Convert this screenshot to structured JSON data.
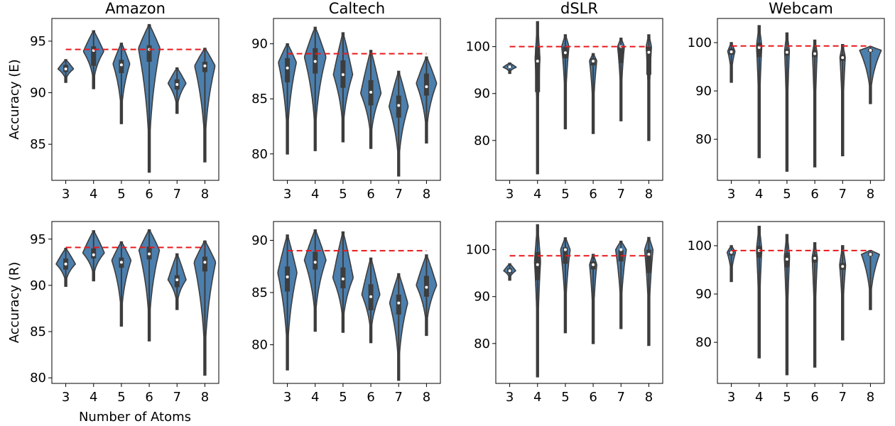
{
  "xlabel": "Number of Atoms",
  "row_labels": [
    "Accuracy (E)",
    "Accuracy (R)"
  ],
  "colors": {
    "violin": "#4c7fad",
    "edge": "#3d3d3d",
    "box": "#3d3d3d",
    "median": "#ffffff",
    "reference": "#e8191c"
  },
  "chart_data": [
    {
      "type": "violin",
      "title": "Amazon",
      "row": 0,
      "col": 0,
      "ylabel": "Accuracy (E)",
      "categories": [
        "3",
        "4",
        "5",
        "6",
        "7",
        "8"
      ],
      "ylim": [
        81.5,
        97.2
      ],
      "yticks": [
        85,
        90,
        95
      ],
      "reference": 94.2,
      "series": [
        {
          "min": 91.0,
          "q1": 92.0,
          "median": 92.3,
          "q3": 92.7,
          "max": 93.2,
          "bulge": 92.3,
          "peak": 0.65
        },
        {
          "min": 90.4,
          "q1": 92.6,
          "median": 94.1,
          "q3": 94.5,
          "max": 96.0,
          "bulge": 94.0,
          "peak": 0.85
        },
        {
          "min": 87.0,
          "q1": 91.9,
          "median": 92.7,
          "q3": 93.2,
          "max": 94.8,
          "bulge": 92.8,
          "peak": 0.7
        },
        {
          "min": 82.3,
          "q1": 93.0,
          "median": 94.2,
          "q3": 94.6,
          "max": 96.6,
          "bulge": 94.3,
          "peak": 0.9
        },
        {
          "min": 88.0,
          "q1": 90.3,
          "median": 90.8,
          "q3": 91.3,
          "max": 92.4,
          "bulge": 90.9,
          "peak": 0.75
        },
        {
          "min": 83.3,
          "q1": 92.0,
          "median": 92.6,
          "q3": 93.0,
          "max": 94.3,
          "bulge": 92.6,
          "peak": 0.85
        }
      ]
    },
    {
      "type": "violin",
      "title": "Caltech",
      "row": 0,
      "col": 1,
      "categories": [
        "3",
        "4",
        "5",
        "6",
        "7",
        "8"
      ],
      "ylim": [
        77.6,
        92.3
      ],
      "yticks": [
        80,
        85,
        90
      ],
      "reference": 89.1,
      "series": [
        {
          "min": 80.0,
          "q1": 86.5,
          "median": 87.8,
          "q3": 88.7,
          "max": 90.0,
          "bulge": 88.3,
          "peak": 0.75
        },
        {
          "min": 80.3,
          "q1": 87.3,
          "median": 88.4,
          "q3": 89.6,
          "max": 91.5,
          "bulge": 88.8,
          "peak": 0.9
        },
        {
          "min": 81.1,
          "q1": 86.0,
          "median": 87.2,
          "q3": 88.5,
          "max": 91.0,
          "bulge": 87.2,
          "peak": 0.8
        },
        {
          "min": 80.5,
          "q1": 84.4,
          "median": 85.6,
          "q3": 86.7,
          "max": 89.4,
          "bulge": 85.5,
          "peak": 0.85
        },
        {
          "min": 78.0,
          "q1": 83.3,
          "median": 84.4,
          "q3": 85.3,
          "max": 87.5,
          "bulge": 84.3,
          "peak": 0.8
        },
        {
          "min": 81.0,
          "q1": 85.3,
          "median": 86.1,
          "q3": 87.3,
          "max": 88.8,
          "bulge": 86.4,
          "peak": 0.85
        }
      ]
    },
    {
      "type": "violin",
      "title": "dSLR",
      "row": 0,
      "col": 2,
      "categories": [
        "3",
        "4",
        "5",
        "6",
        "7",
        "8"
      ],
      "ylim": [
        71.5,
        106.0
      ],
      "yticks": [
        80,
        90,
        100
      ],
      "reference": 100.0,
      "series": [
        {
          "min": 94.3,
          "q1": 95.5,
          "median": 95.7,
          "q3": 96.0,
          "max": 96.5,
          "bulge": 95.6,
          "peak": 0.55
        },
        {
          "min": 72.9,
          "q1": 90.3,
          "median": 96.9,
          "q3": 100.0,
          "max": 105.3,
          "bulge": 97.5,
          "peak": 0.2
        },
        {
          "min": 82.5,
          "q1": 97.5,
          "median": 98.7,
          "q3": 100.0,
          "max": 102.5,
          "bulge": 100.0,
          "peak": 0.3
        },
        {
          "min": 81.5,
          "q1": 96.0,
          "median": 96.9,
          "q3": 97.5,
          "max": 98.5,
          "bulge": 97.0,
          "peak": 0.3
        },
        {
          "min": 84.2,
          "q1": 96.5,
          "median": 100.0,
          "q3": 100.0,
          "max": 101.8,
          "bulge": 100.0,
          "peak": 0.28
        },
        {
          "min": 80.0,
          "q1": 94.0,
          "median": 98.8,
          "q3": 100.0,
          "max": 102.5,
          "bulge": 100.0,
          "peak": 0.22
        }
      ]
    },
    {
      "type": "violin",
      "title": "Webcam",
      "row": 0,
      "col": 3,
      "categories": [
        "3",
        "4",
        "5",
        "6",
        "7",
        "8"
      ],
      "ylim": [
        71.5,
        105.0
      ],
      "yticks": [
        80,
        90,
        100
      ],
      "reference": 99.3,
      "series": [
        {
          "min": 91.8,
          "q1": 97.5,
          "median": 98.1,
          "q3": 98.8,
          "max": 100.0,
          "bulge": 98.2,
          "peak": 0.3
        },
        {
          "min": 76.2,
          "q1": 97.0,
          "median": 99.0,
          "q3": 100.0,
          "max": 103.5,
          "bulge": 99.3,
          "peak": 0.22
        },
        {
          "min": 73.4,
          "q1": 97.3,
          "median": 98.0,
          "q3": 98.7,
          "max": 102.0,
          "bulge": 98.3,
          "peak": 0.2
        },
        {
          "min": 74.3,
          "q1": 97.0,
          "median": 97.7,
          "q3": 98.5,
          "max": 100.5,
          "bulge": 97.8,
          "peak": 0.2
        },
        {
          "min": 76.6,
          "q1": 96.2,
          "median": 96.9,
          "q3": 97.6,
          "max": 99.6,
          "bulge": 97.0,
          "peak": 0.22
        },
        {
          "min": 87.4,
          "q1": 98.1,
          "median": 98.4,
          "q3": 98.7,
          "max": 99.2,
          "bulge": 98.4,
          "peak": 0.9
        }
      ]
    },
    {
      "type": "violin",
      "row": 1,
      "col": 0,
      "ylabel": "Accuracy (R)",
      "categories": [
        "3",
        "4",
        "5",
        "6",
        "7",
        "8"
      ],
      "ylim": [
        79.4,
        96.9
      ],
      "yticks": [
        80,
        85,
        90,
        95
      ],
      "reference": 94.1,
      "series": [
        {
          "min": 89.9,
          "q1": 91.7,
          "median": 92.3,
          "q3": 92.9,
          "max": 94.0,
          "bulge": 92.3,
          "peak": 0.8
        },
        {
          "min": 90.5,
          "q1": 92.9,
          "median": 93.3,
          "q3": 94.0,
          "max": 95.9,
          "bulge": 93.5,
          "peak": 0.9
        },
        {
          "min": 85.6,
          "q1": 91.9,
          "median": 92.5,
          "q3": 93.0,
          "max": 94.7,
          "bulge": 92.7,
          "peak": 0.8
        },
        {
          "min": 84.0,
          "q1": 92.8,
          "median": 93.4,
          "q3": 94.2,
          "max": 96.0,
          "bulge": 93.8,
          "peak": 0.85
        },
        {
          "min": 87.4,
          "q1": 89.8,
          "median": 90.6,
          "q3": 91.1,
          "max": 93.4,
          "bulge": 90.6,
          "peak": 0.75
        },
        {
          "min": 80.3,
          "q1": 91.5,
          "median": 92.5,
          "q3": 93.1,
          "max": 94.8,
          "bulge": 92.5,
          "peak": 0.9
        }
      ]
    },
    {
      "type": "violin",
      "row": 1,
      "col": 1,
      "categories": [
        "3",
        "4",
        "5",
        "6",
        "7",
        "8"
      ],
      "ylim": [
        76.3,
        91.8
      ],
      "yticks": [
        80,
        85,
        90
      ],
      "reference": 89.0,
      "series": [
        {
          "min": 77.6,
          "q1": 85.1,
          "median": 86.5,
          "q3": 87.5,
          "max": 90.5,
          "bulge": 86.9,
          "peak": 0.8
        },
        {
          "min": 81.3,
          "q1": 87.2,
          "median": 87.9,
          "q3": 88.9,
          "max": 91.0,
          "bulge": 88.1,
          "peak": 0.9
        },
        {
          "min": 81.2,
          "q1": 85.4,
          "median": 86.3,
          "q3": 87.4,
          "max": 90.8,
          "bulge": 86.4,
          "peak": 0.85
        },
        {
          "min": 80.2,
          "q1": 83.3,
          "median": 84.6,
          "q3": 85.8,
          "max": 88.3,
          "bulge": 84.8,
          "peak": 0.75
        },
        {
          "min": 76.6,
          "q1": 82.9,
          "median": 84.0,
          "q3": 84.8,
          "max": 86.8,
          "bulge": 84.0,
          "peak": 0.75
        },
        {
          "min": 80.9,
          "q1": 84.6,
          "median": 85.5,
          "q3": 86.6,
          "max": 88.6,
          "bulge": 85.7,
          "peak": 0.85
        }
      ]
    },
    {
      "type": "violin",
      "row": 1,
      "col": 2,
      "categories": [
        "3",
        "4",
        "5",
        "6",
        "7",
        "8"
      ],
      "ylim": [
        71.5,
        106.0
      ],
      "yticks": [
        80,
        90,
        100
      ],
      "reference": 98.7,
      "series": [
        {
          "min": 93.5,
          "q1": 95.0,
          "median": 95.5,
          "q3": 96.0,
          "max": 97.0,
          "bulge": 95.5,
          "peak": 0.5
        },
        {
          "min": 72.9,
          "q1": 93.5,
          "median": 96.8,
          "q3": 99.5,
          "max": 105.3,
          "bulge": 97.5,
          "peak": 0.25
        },
        {
          "min": 82.3,
          "q1": 97.0,
          "median": 100.0,
          "q3": 100.5,
          "max": 102.5,
          "bulge": 100.0,
          "peak": 0.4
        },
        {
          "min": 80.0,
          "q1": 95.8,
          "median": 96.8,
          "q3": 97.5,
          "max": 99.0,
          "bulge": 96.8,
          "peak": 0.3
        },
        {
          "min": 83.2,
          "q1": 97.5,
          "median": 100.0,
          "q3": 100.0,
          "max": 101.8,
          "bulge": 100.0,
          "peak": 0.45
        },
        {
          "min": 79.6,
          "q1": 95.0,
          "median": 99.0,
          "q3": 100.0,
          "max": 102.6,
          "bulge": 100.0,
          "peak": 0.35
        }
      ]
    },
    {
      "type": "violin",
      "row": 1,
      "col": 3,
      "categories": [
        "3",
        "4",
        "5",
        "6",
        "7",
        "8"
      ],
      "ylim": [
        71.5,
        105.0
      ],
      "yticks": [
        80,
        90,
        100
      ],
      "reference": 99.0,
      "series": [
        {
          "min": 92.6,
          "q1": 98.0,
          "median": 98.6,
          "q3": 99.0,
          "max": 100.0,
          "bulge": 98.6,
          "peak": 0.35
        },
        {
          "min": 76.8,
          "q1": 97.5,
          "median": 99.0,
          "q3": 100.0,
          "max": 104.0,
          "bulge": 99.2,
          "peak": 0.22
        },
        {
          "min": 73.3,
          "q1": 95.5,
          "median": 97.2,
          "q3": 98.5,
          "max": 102.3,
          "bulge": 97.8,
          "peak": 0.22
        },
        {
          "min": 74.9,
          "q1": 96.5,
          "median": 97.4,
          "q3": 98.2,
          "max": 100.6,
          "bulge": 97.5,
          "peak": 0.22
        },
        {
          "min": 80.5,
          "q1": 95.0,
          "median": 95.7,
          "q3": 96.4,
          "max": 100.0,
          "bulge": 96.0,
          "peak": 0.25
        },
        {
          "min": 86.8,
          "q1": 97.9,
          "median": 98.2,
          "q3": 98.6,
          "max": 99.0,
          "bulge": 98.2,
          "peak": 0.75
        }
      ]
    }
  ]
}
